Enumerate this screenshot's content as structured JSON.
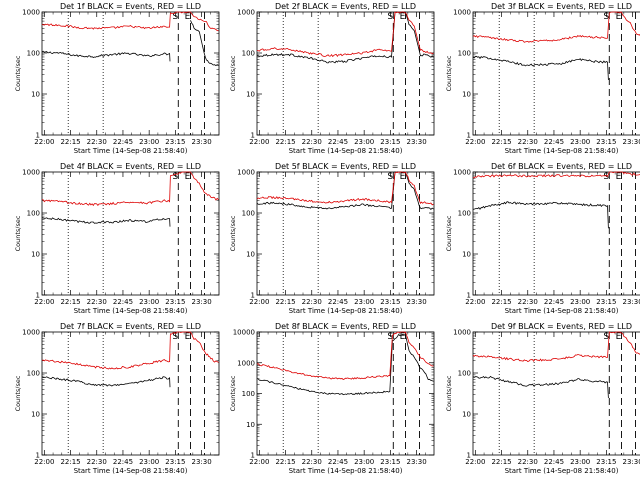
{
  "colors": {
    "events": "#000000",
    "lld": "#dd0000",
    "axis": "#000000",
    "background": "#ffffff"
  },
  "common": {
    "ylabel": "Counts/sec",
    "xlabel": "Start Time (14-Sep-08 21:58:40)",
    "x_ticks": [
      "22:00",
      "22:15",
      "22:30",
      "22:45",
      "23:00",
      "23:15",
      "23:30"
    ],
    "y_ticks_panel": [
      "1",
      "10",
      "100",
      "1000"
    ],
    "y_ticks_panel_8f": [
      "1",
      "10",
      "100",
      "1000",
      "10000"
    ],
    "markers": {
      "s": "S",
      "e": "E"
    }
  },
  "chart_data": [
    {
      "type": "line",
      "title": "Det 1f BLACK = Events, RED = LLD",
      "x_range_min": [
        0,
        101.3
      ],
      "ylim": [
        1,
        1000
      ],
      "y_scale": "log",
      "dotted_lines_min": [
        15,
        35
      ],
      "dashed_lines_min": [
        78,
        85,
        93
      ],
      "series": [
        {
          "name": "Events",
          "x_min": [
            0,
            10,
            20,
            30,
            40,
            50,
            60,
            70,
            73,
            73.5,
            81,
            84,
            85,
            87,
            90,
            93.5,
            96,
            98,
            101
          ],
          "values": [
            105,
            100,
            86,
            82,
            92,
            98,
            84,
            95,
            94,
            45,
            null,
            null,
            650,
            420,
            330,
            75,
            58,
            52,
            50
          ]
        },
        {
          "name": "LLD",
          "x_min": [
            0,
            10,
            20,
            30,
            40,
            50,
            60,
            70,
            73,
            73.5,
            80,
            83,
            85,
            87,
            90,
            93.5,
            96,
            98,
            101
          ],
          "values": [
            500,
            480,
            420,
            400,
            410,
            450,
            400,
            440,
            430,
            950,
            1000,
            1000,
            1000,
            800,
            650,
            600,
            430,
            380,
            350
          ]
        }
      ]
    },
    {
      "type": "line",
      "title": "Det 2f BLACK = Events, RED = LLD",
      "x_range_min": [
        0,
        101.3
      ],
      "ylim": [
        1,
        1000
      ],
      "y_scale": "log",
      "dotted_lines_min": [
        15,
        35
      ],
      "dashed_lines_min": [
        78,
        85,
        93
      ],
      "series": [
        {
          "name": "Events",
          "x_min": [
            0,
            10,
            20,
            30,
            40,
            50,
            60,
            70,
            77,
            79,
            81,
            84,
            85,
            87,
            90,
            93.5,
            96,
            98,
            101
          ],
          "values": [
            85,
            92,
            90,
            75,
            60,
            62,
            75,
            85,
            80,
            1000,
            1000,
            1000,
            1000,
            500,
            350,
            90,
            90,
            85,
            80
          ]
        },
        {
          "name": "LLD",
          "x_min": [
            0,
            10,
            20,
            30,
            40,
            50,
            60,
            70,
            77,
            79,
            81,
            84,
            85,
            87,
            90,
            93.5,
            96,
            98,
            101
          ],
          "values": [
            115,
            130,
            120,
            100,
            85,
            90,
            100,
            120,
            110,
            1000,
            1000,
            1000,
            1000,
            650,
            450,
            120,
            110,
            105,
            100
          ]
        }
      ]
    },
    {
      "type": "line",
      "title": "Det 3f BLACK = Events, RED = LLD",
      "x_range_min": [
        0,
        101.3
      ],
      "ylim": [
        1,
        1000
      ],
      "y_scale": "log",
      "dotted_lines_min": [
        15,
        35
      ],
      "dashed_lines_min": [
        78,
        85,
        93
      ],
      "series": [
        {
          "name": "Events",
          "x_min": [
            0,
            10,
            20,
            30,
            40,
            50,
            60,
            70,
            77,
            78,
            79,
            81,
            84,
            85,
            87,
            90,
            93.5,
            96,
            98,
            101
          ],
          "values": [
            80,
            75,
            62,
            50,
            52,
            55,
            70,
            62,
            60,
            8,
            null,
            null,
            null,
            null,
            null,
            null,
            null,
            null,
            null,
            null
          ]
        },
        {
          "name": "LLD",
          "x_min": [
            0,
            10,
            20,
            30,
            40,
            50,
            60,
            70,
            77,
            78,
            81,
            84,
            85,
            87,
            90,
            93.5,
            96,
            98,
            101
          ],
          "values": [
            260,
            240,
            210,
            190,
            200,
            210,
            260,
            240,
            230,
            1000,
            1000,
            1000,
            1000,
            700,
            520,
            300,
            260,
            230,
            210
          ]
        }
      ]
    },
    {
      "type": "line",
      "title": "Det 4f BLACK = Events, RED = LLD",
      "x_range_min": [
        0,
        101.3
      ],
      "ylim": [
        1,
        1000
      ],
      "y_scale": "log",
      "dotted_lines_min": [
        15,
        35
      ],
      "dashed_lines_min": [
        78,
        85,
        93
      ],
      "series": [
        {
          "name": "Events",
          "x_min": [
            0,
            10,
            20,
            30,
            40,
            50,
            60,
            70,
            73,
            73.5,
            80,
            84,
            85,
            87,
            90,
            93.5,
            96,
            98,
            101
          ],
          "values": [
            75,
            70,
            62,
            58,
            60,
            66,
            62,
            72,
            70,
            30,
            null,
            null,
            null,
            null,
            null,
            null,
            null,
            null,
            null
          ]
        },
        {
          "name": "LLD",
          "x_min": [
            0,
            10,
            20,
            30,
            40,
            50,
            60,
            70,
            73,
            73.5,
            80,
            83,
            85,
            87,
            90,
            93.5,
            96,
            98,
            101
          ],
          "values": [
            200,
            190,
            170,
            160,
            170,
            185,
            175,
            200,
            190,
            800,
            1000,
            1000,
            1000,
            700,
            520,
            300,
            260,
            230,
            210
          ]
        }
      ]
    },
    {
      "type": "line",
      "title": "Det 5f BLACK = Events, RED = LLD",
      "x_range_min": [
        0,
        101.3
      ],
      "ylim": [
        1,
        1000
      ],
      "y_scale": "log",
      "dotted_lines_min": [
        15,
        35
      ],
      "dashed_lines_min": [
        78,
        85,
        93
      ],
      "series": [
        {
          "name": "Events",
          "x_min": [
            0,
            10,
            20,
            30,
            40,
            50,
            60,
            70,
            77,
            79,
            81,
            84,
            85,
            87,
            90,
            93.5,
            96,
            98,
            101
          ],
          "values": [
            170,
            175,
            160,
            140,
            130,
            140,
            160,
            145,
            130,
            1000,
            1000,
            1000,
            1000,
            520,
            360,
            130,
            140,
            130,
            125
          ]
        },
        {
          "name": "LLD",
          "x_min": [
            0,
            10,
            20,
            30,
            40,
            50,
            60,
            70,
            77,
            79,
            81,
            84,
            85,
            87,
            90,
            93.5,
            96,
            98,
            101
          ],
          "values": [
            230,
            240,
            220,
            195,
            180,
            195,
            220,
            200,
            180,
            1000,
            1000,
            1000,
            1000,
            650,
            450,
            180,
            180,
            170,
            165
          ]
        }
      ]
    },
    {
      "type": "line",
      "title": "Det 6f BLACK = Events, RED = LLD",
      "x_range_min": [
        0,
        101.3
      ],
      "ylim": [
        1,
        1000
      ],
      "y_scale": "log",
      "dotted_lines_min": [
        15,
        35
      ],
      "dashed_lines_min": [
        78,
        85,
        93
      ],
      "series": [
        {
          "name": "Events",
          "x_min": [
            0,
            10,
            20,
            30,
            40,
            50,
            60,
            70,
            77,
            78,
            80,
            84,
            85,
            87,
            90,
            93.5,
            96,
            98,
            101
          ],
          "values": [
            120,
            150,
            180,
            165,
            170,
            175,
            160,
            155,
            150,
            12,
            null,
            null,
            null,
            null,
            null,
            null,
            null,
            null,
            null
          ]
        },
        {
          "name": "LLD",
          "x_min": [
            0,
            10,
            20,
            30,
            40,
            50,
            60,
            70,
            77,
            78,
            81,
            84,
            85,
            87,
            90,
            93.5,
            96,
            98,
            101
          ],
          "values": [
            760,
            800,
            820,
            800,
            810,
            820,
            800,
            800,
            790,
            1000,
            1000,
            1000,
            1000,
            950,
            900,
            880,
            850,
            840,
            830
          ]
        }
      ]
    },
    {
      "type": "line",
      "title": "Det 7f BLACK = Events, RED = LLD",
      "x_range_min": [
        0,
        101.3
      ],
      "ylim": [
        1,
        1000
      ],
      "y_scale": "log",
      "dotted_lines_min": [
        15,
        35
      ],
      "dashed_lines_min": [
        78,
        85,
        93
      ],
      "series": [
        {
          "name": "Events",
          "x_min": [
            0,
            10,
            20,
            30,
            40,
            50,
            60,
            70,
            73,
            73.5,
            80,
            84,
            85,
            87,
            90,
            93.5,
            96,
            98,
            101
          ],
          "values": [
            80,
            72,
            62,
            52,
            50,
            55,
            65,
            78,
            72,
            30,
            null,
            null,
            null,
            null,
            null,
            null,
            null,
            null,
            null
          ]
        },
        {
          "name": "LLD",
          "x_min": [
            0,
            10,
            20,
            30,
            40,
            50,
            60,
            70,
            73,
            73.5,
            80,
            83,
            85,
            87,
            90,
            93.5,
            96,
            98,
            101
          ],
          "values": [
            200,
            190,
            165,
            140,
            130,
            140,
            170,
            200,
            190,
            900,
            1000,
            1000,
            1000,
            700,
            550,
            300,
            250,
            200,
            180
          ]
        }
      ]
    },
    {
      "type": "line",
      "title": "Det 8f BLACK = Events, RED = LLD",
      "x_range_min": [
        0,
        101.3
      ],
      "ylim": [
        1,
        10000
      ],
      "y_scale": "log",
      "dotted_lines_min": [
        15,
        35
      ],
      "dashed_lines_min": [
        78,
        85,
        93
      ],
      "series": [
        {
          "name": "Events",
          "x_min": [
            0,
            10,
            20,
            30,
            40,
            50,
            60,
            70,
            76,
            77.5,
            81,
            84,
            85,
            87,
            90,
            93.5,
            96,
            98,
            101
          ],
          "values": [
            300,
            220,
            160,
            120,
            100,
            95,
            100,
            110,
            115,
            5000,
            8000,
            8000,
            8000,
            2500,
            1500,
            700,
            500,
            300,
            250
          ]
        },
        {
          "name": "LLD",
          "x_min": [
            0,
            10,
            20,
            30,
            40,
            50,
            60,
            70,
            76,
            77.5,
            81,
            84,
            85,
            87,
            90,
            93.5,
            96,
            98,
            101
          ],
          "values": [
            900,
            700,
            500,
            380,
            320,
            300,
            320,
            360,
            380,
            8000,
            10000,
            10000,
            10000,
            4500,
            3000,
            1500,
            1200,
            900,
            800
          ]
        }
      ]
    },
    {
      "type": "line",
      "title": "Det 9f BLACK = Events, RED = LLD",
      "x_range_min": [
        0,
        101.3
      ],
      "ylim": [
        1,
        1000
      ],
      "y_scale": "log",
      "dotted_lines_min": [
        15,
        35
      ],
      "dashed_lines_min": [
        78,
        85,
        93
      ],
      "series": [
        {
          "name": "Events",
          "x_min": [
            0,
            10,
            20,
            30,
            40,
            50,
            60,
            70,
            77,
            78,
            80,
            84,
            85,
            87,
            90,
            93.5,
            96,
            98,
            101
          ],
          "values": [
            80,
            78,
            62,
            50,
            52,
            55,
            70,
            62,
            60,
            10,
            null,
            null,
            null,
            null,
            null,
            null,
            null,
            null,
            null
          ]
        },
        {
          "name": "LLD",
          "x_min": [
            0,
            10,
            20,
            30,
            40,
            50,
            60,
            70,
            77,
            78,
            81,
            84,
            85,
            87,
            90,
            93.5,
            96,
            98,
            101
          ],
          "values": [
            260,
            250,
            220,
            200,
            210,
            220,
            270,
            250,
            240,
            1000,
            1000,
            1000,
            1000,
            750,
            550,
            300,
            280,
            250,
            230
          ]
        }
      ]
    }
  ]
}
